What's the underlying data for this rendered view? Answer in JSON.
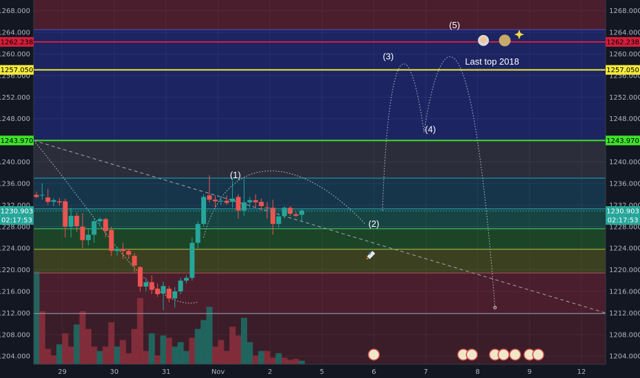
{
  "chart_data": {
    "type": "candlestick",
    "y_axis": {
      "range": [
        1202.5,
        1270.0
      ],
      "ticks": [
        1268.0,
        1264.0,
        1260.0,
        1256.0,
        1252.0,
        1248.0,
        1244.0,
        1240.0,
        1236.0,
        1232.0,
        1228.0,
        1224.0,
        1220.0,
        1216.0,
        1212.0,
        1208.0,
        1204.0
      ],
      "tick_labels": [
        "1268.000",
        "1264.000",
        "1260.000",
        "1256.000",
        "1252.000",
        "1248.000",
        "1244.000",
        "1240.000",
        "1236.000",
        "1232.000",
        "1228.000",
        "1224.000",
        "1220.000",
        "1216.000",
        "1212.000",
        "1208.000",
        "1204.000"
      ]
    },
    "x_axis": {
      "tick_labels": [
        "29",
        "30",
        "31",
        "Nov",
        "2",
        "5",
        "6",
        "7",
        "8",
        "9",
        "12"
      ],
      "tick_index": [
        4.5,
        13.5,
        22.5,
        31.5,
        40.5,
        49.5,
        58.5,
        67.5,
        76.5,
        85.5,
        94.5
      ]
    },
    "candles": [
      {
        "o": 1233.9,
        "h": 1234.5,
        "l": 1233.3,
        "c": 1233.5
      },
      {
        "o": 1233.8,
        "h": 1236.0,
        "l": 1233.0,
        "c": 1233.9
      },
      {
        "o": 1233.4,
        "h": 1235.0,
        "l": 1232.0,
        "c": 1232.6
      },
      {
        "o": 1232.6,
        "h": 1233.3,
        "l": 1231.8,
        "c": 1232.9
      },
      {
        "o": 1232.7,
        "h": 1233.3,
        "l": 1231.9,
        "c": 1232.5
      },
      {
        "o": 1232.7,
        "h": 1233.2,
        "l": 1226.0,
        "c": 1228.0
      },
      {
        "o": 1228.0,
        "h": 1231.5,
        "l": 1226.0,
        "c": 1230.0
      },
      {
        "o": 1230.0,
        "h": 1230.6,
        "l": 1227.0,
        "c": 1228.1
      },
      {
        "o": 1228.0,
        "h": 1230.5,
        "l": 1224.0,
        "c": 1225.5
      },
      {
        "o": 1225.5,
        "h": 1227.5,
        "l": 1224.5,
        "c": 1226.5
      },
      {
        "o": 1226.5,
        "h": 1229.5,
        "l": 1225.0,
        "c": 1229.0
      },
      {
        "o": 1229.0,
        "h": 1229.7,
        "l": 1228.2,
        "c": 1229.4
      },
      {
        "o": 1229.4,
        "h": 1229.6,
        "l": 1226.0,
        "c": 1227.2
      },
      {
        "o": 1227.4,
        "h": 1228.0,
        "l": 1222.5,
        "c": 1223.5
      },
      {
        "o": 1223.5,
        "h": 1224.2,
        "l": 1222.6,
        "c": 1223.9
      },
      {
        "o": 1223.9,
        "h": 1225.0,
        "l": 1222.0,
        "c": 1223.5
      },
      {
        "o": 1223.5,
        "h": 1223.9,
        "l": 1222.0,
        "c": 1222.8
      },
      {
        "o": 1222.6,
        "h": 1223.1,
        "l": 1219.5,
        "c": 1220.8
      },
      {
        "o": 1220.5,
        "h": 1220.7,
        "l": 1216.0,
        "c": 1216.9
      },
      {
        "o": 1216.9,
        "h": 1218.5,
        "l": 1216.0,
        "c": 1217.7
      },
      {
        "o": 1217.7,
        "h": 1219.0,
        "l": 1215.5,
        "c": 1216.3
      },
      {
        "o": 1216.5,
        "h": 1217.5,
        "l": 1215.0,
        "c": 1215.5
      },
      {
        "o": 1215.6,
        "h": 1217.8,
        "l": 1212.5,
        "c": 1217.0
      },
      {
        "o": 1216.5,
        "h": 1217.0,
        "l": 1214.0,
        "c": 1214.7
      },
      {
        "o": 1214.7,
        "h": 1216.8,
        "l": 1213.0,
        "c": 1216.0
      },
      {
        "o": 1216.0,
        "h": 1218.5,
        "l": 1215.5,
        "c": 1218.0
      },
      {
        "o": 1218.0,
        "h": 1219.0,
        "l": 1217.5,
        "c": 1218.5
      },
      {
        "o": 1218.5,
        "h": 1226.0,
        "l": 1218.0,
        "c": 1225.0
      },
      {
        "o": 1225.0,
        "h": 1229.0,
        "l": 1224.0,
        "c": 1228.5
      },
      {
        "o": 1228.5,
        "h": 1234.0,
        "l": 1228.0,
        "c": 1233.5
      },
      {
        "o": 1233.8,
        "h": 1237.5,
        "l": 1232.5,
        "c": 1233.0
      },
      {
        "o": 1233.0,
        "h": 1233.8,
        "l": 1231.5,
        "c": 1232.7
      },
      {
        "o": 1232.7,
        "h": 1233.5,
        "l": 1232.0,
        "c": 1232.8
      },
      {
        "o": 1232.8,
        "h": 1233.8,
        "l": 1232.0,
        "c": 1232.4
      },
      {
        "o": 1232.6,
        "h": 1236.5,
        "l": 1231.5,
        "c": 1233.2
      },
      {
        "o": 1233.5,
        "h": 1234.0,
        "l": 1229.5,
        "c": 1231.0
      },
      {
        "o": 1231.0,
        "h": 1236.8,
        "l": 1230.0,
        "c": 1232.5
      },
      {
        "o": 1232.5,
        "h": 1233.5,
        "l": 1231.5,
        "c": 1232.9
      },
      {
        "o": 1232.9,
        "h": 1234.0,
        "l": 1231.5,
        "c": 1232.5
      },
      {
        "o": 1232.6,
        "h": 1233.2,
        "l": 1231.0,
        "c": 1231.8
      },
      {
        "o": 1231.6,
        "h": 1232.6,
        "l": 1229.5,
        "c": 1231.5
      },
      {
        "o": 1231.5,
        "h": 1233.0,
        "l": 1226.5,
        "c": 1228.5
      },
      {
        "o": 1228.5,
        "h": 1230.5,
        "l": 1227.8,
        "c": 1229.9
      },
      {
        "o": 1230.0,
        "h": 1231.8,
        "l": 1229.5,
        "c": 1231.5
      },
      {
        "o": 1231.5,
        "h": 1231.8,
        "l": 1230.0,
        "c": 1230.4
      },
      {
        "o": 1230.3,
        "h": 1230.8,
        "l": 1229.8,
        "c": 1230.0
      },
      {
        "o": 1230.2,
        "h": 1231.2,
        "l": 1229.0,
        "c": 1231.0
      }
    ],
    "volume": [
      {
        "v": 210,
        "d": "up"
      },
      {
        "v": 120,
        "d": "down"
      },
      {
        "v": 35,
        "d": "down"
      },
      {
        "v": 20,
        "d": "down"
      },
      {
        "v": 45,
        "d": "up"
      },
      {
        "v": 70,
        "d": "down"
      },
      {
        "v": 40,
        "d": "down"
      },
      {
        "v": 90,
        "d": "up"
      },
      {
        "v": 120,
        "d": "down"
      },
      {
        "v": 80,
        "d": "down"
      },
      {
        "v": 40,
        "d": "down"
      },
      {
        "v": 30,
        "d": "up"
      },
      {
        "v": 40,
        "d": "down"
      },
      {
        "v": 95,
        "d": "down"
      },
      {
        "v": 40,
        "d": "up"
      },
      {
        "v": 55,
        "d": "down"
      },
      {
        "v": 25,
        "d": "down"
      },
      {
        "v": 80,
        "d": "down"
      },
      {
        "v": 150,
        "d": "down"
      },
      {
        "v": 30,
        "d": "down"
      },
      {
        "v": 70,
        "d": "up"
      },
      {
        "v": 20,
        "d": "down"
      },
      {
        "v": 65,
        "d": "up"
      },
      {
        "v": 60,
        "d": "down"
      },
      {
        "v": 40,
        "d": "up"
      },
      {
        "v": 50,
        "d": "up"
      },
      {
        "v": 30,
        "d": "up"
      },
      {
        "v": 60,
        "d": "down"
      },
      {
        "v": 80,
        "d": "up"
      },
      {
        "v": 100,
        "d": "up"
      },
      {
        "v": 130,
        "d": "up"
      },
      {
        "v": 40,
        "d": "down"
      },
      {
        "v": 55,
        "d": "down"
      },
      {
        "v": 30,
        "d": "down"
      },
      {
        "v": 85,
        "d": "down"
      },
      {
        "v": 65,
        "d": "down"
      },
      {
        "v": 105,
        "d": "up"
      },
      {
        "v": 50,
        "d": "up"
      },
      {
        "v": 20,
        "d": "down"
      },
      {
        "v": 30,
        "d": "up"
      },
      {
        "v": 30,
        "d": "down"
      },
      {
        "v": 15,
        "d": "down"
      },
      {
        "v": 25,
        "d": "up"
      },
      {
        "v": 15,
        "d": "down"
      },
      {
        "v": 10,
        "d": "down"
      },
      {
        "v": 12,
        "d": "down"
      },
      {
        "v": 8,
        "d": "up"
      }
    ],
    "bands": [
      {
        "from": 1264.5,
        "to": 1270.0,
        "color": "#4a1e2c"
      },
      {
        "from": 1243.97,
        "to": 1264.5,
        "color": "#1c2462"
      },
      {
        "from": 1237.0,
        "to": 1243.97,
        "color": "#2b2d3a"
      },
      {
        "from": 1231.3,
        "to": 1237.0,
        "color": "#17354a"
      },
      {
        "from": 1227.6,
        "to": 1231.3,
        "color": "#174442"
      },
      {
        "from": 1223.8,
        "to": 1227.6,
        "color": "#1c4427"
      },
      {
        "from": 1219.4,
        "to": 1223.8,
        "color": "#3b4020"
      },
      {
        "from": 1211.9,
        "to": 1219.4,
        "color": "#4a1e2c"
      },
      {
        "from": 1202.5,
        "to": 1211.9,
        "color": "#3a1d28"
      }
    ],
    "level_lines": [
      {
        "price": 1262.238,
        "color": "#d41e3c",
        "label": "1262.238",
        "width": 2
      },
      {
        "price": 1257.05,
        "color": "#f5ea3c",
        "label": "1257.050",
        "width": 2
      },
      {
        "price": 1243.97,
        "color": "#3ee22a",
        "label": "1243.970",
        "width": 2
      },
      {
        "price": 1237.0,
        "color": "#2aa3bf",
        "label": "",
        "width": 1
      },
      {
        "price": 1231.3,
        "color": "#2aa3bf",
        "label": "",
        "width": 1
      },
      {
        "price": 1227.6,
        "color": "#4cd060",
        "label": "",
        "width": 1
      },
      {
        "price": 1223.8,
        "color": "#b3c040",
        "label": "",
        "width": 1
      },
      {
        "price": 1219.4,
        "color": "#b04f5f",
        "label": "",
        "width": 1
      },
      {
        "price": 1211.9,
        "color": "#9aa0b5",
        "label": "",
        "width": 1
      },
      {
        "price": 1264.5,
        "color": "#5a4ecf",
        "label": "",
        "width": 1
      }
    ],
    "current_price": {
      "value": "1230.903",
      "countdown": "02:17:53",
      "color": "#26a69a"
    },
    "annotations": [
      {
        "id": "wave-1",
        "text": "(1)",
        "x": 34.5,
        "y": 1237.0
      },
      {
        "id": "wave-2",
        "text": "(2)",
        "x": 58.5,
        "y": 1228.0
      },
      {
        "id": "wave-3",
        "text": "(3)",
        "x": 61.0,
        "y": 1259.0
      },
      {
        "id": "wave-4",
        "text": "(4)",
        "x": 68.3,
        "y": 1245.5
      },
      {
        "id": "wave-5",
        "text": "(5)",
        "x": 72.5,
        "y": 1264.8
      },
      {
        "id": "last-top",
        "text": "Last top 2018",
        "x": 79.0,
        "y": 1258.0
      }
    ]
  }
}
